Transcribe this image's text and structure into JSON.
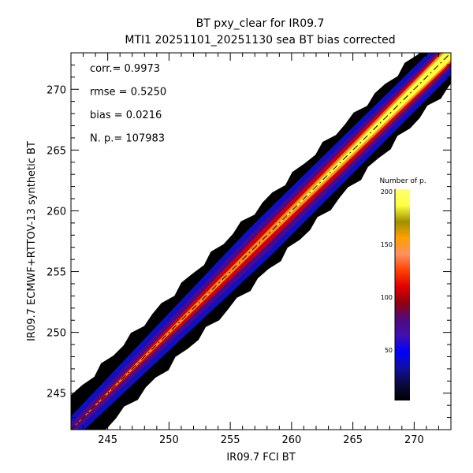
{
  "chart_data": {
    "type": "heatmap",
    "title": "BT pxy_clear for IR09.7",
    "subtitle": "MTI1 20251101_20251130 sea BT bias corrected",
    "xlabel": "IR09.7 FCI BT",
    "ylabel": "IR09.7 ECMWF+RTTOV-13 synthetic BT",
    "xlim": [
      242,
      273
    ],
    "ylim": [
      242,
      273
    ],
    "xticks": [
      245,
      250,
      255,
      260,
      265,
      270
    ],
    "yticks": [
      245,
      250,
      255,
      260,
      265,
      270
    ],
    "grid": false,
    "stats": [
      {
        "label": "corr.= 0.9973"
      },
      {
        "label": "rmse = 0.5250"
      },
      {
        "label": "bias = 0.0216"
      },
      {
        "label": "N. p.=  107983"
      }
    ],
    "reference_line": "y = x (dashed)",
    "density_bands": [
      {
        "level": 5,
        "color": "#000000",
        "halfwidth": [
          1.3,
          1.5,
          1.3
        ]
      },
      {
        "level": 35,
        "color": "#1010c0",
        "halfwidth": [
          0.5,
          1.0,
          0.9
        ]
      },
      {
        "level": 75,
        "color": "#4a0a90",
        "halfwidth": [
          0.2,
          0.7,
          0.65
        ]
      },
      {
        "level": 100,
        "color": "#d00000",
        "halfwidth": [
          0.0,
          0.4,
          0.5
        ]
      },
      {
        "level": 140,
        "color": "#ff8c20",
        "halfwidth": [
          0.0,
          0.15,
          0.4
        ]
      },
      {
        "level": 185,
        "color": "#ffff40",
        "halfwidth": [
          0.0,
          0.0,
          0.3
        ]
      }
    ],
    "colorbar": {
      "title": "Number of p.",
      "range": [
        0,
        200
      ],
      "ticks": [
        50,
        100,
        150,
        200
      ],
      "colors": [
        "#000000",
        "#0a0a40",
        "#1010a0",
        "#0000ff",
        "#4010b0",
        "#500a80",
        "#900010",
        "#e00000",
        "#ff4000",
        "#ff9060",
        "#ffa000",
        "#a09000",
        "#ffff40",
        "#ffff70"
      ]
    }
  }
}
